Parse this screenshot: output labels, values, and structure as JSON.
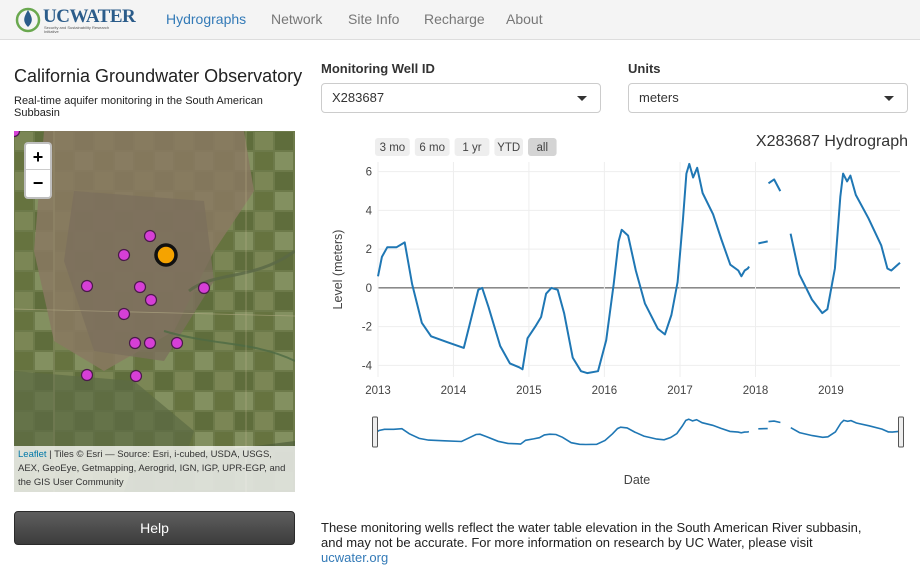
{
  "header": {
    "logo": {
      "title": "UCWATER",
      "tagline": "Security and Sustainability Research Initiative"
    },
    "nav": [
      {
        "label": "Hydrographs",
        "active": true
      },
      {
        "label": "Network",
        "active": false
      },
      {
        "label": "Site Info",
        "active": false
      },
      {
        "label": "Recharge",
        "active": false
      },
      {
        "label": "About",
        "active": false
      }
    ]
  },
  "sidebar": {
    "title": "California Groundwater Observatory",
    "subtitle": "Real-time aquifer monitoring in the South American Subbasin",
    "map": {
      "zoom_in": "+",
      "zoom_out": "−",
      "attribution_link": "Leaflet",
      "attribution_text": " | Tiles © Esri — Source: Esri, i-cubed, USDA, USGS, AEX, GeoEye, Getmapping, Aerogrid, IGN, IGP, UPR-EGP, and the GIS User Community",
      "markers": [
        {
          "id": 1,
          "selected": false
        },
        {
          "id": 2,
          "selected": false
        },
        {
          "id": 3,
          "selected": true
        },
        {
          "id": 4,
          "selected": false
        },
        {
          "id": 5,
          "selected": false
        },
        {
          "id": 6,
          "selected": false
        },
        {
          "id": 7,
          "selected": false
        },
        {
          "id": 8,
          "selected": false
        },
        {
          "id": 9,
          "selected": false
        },
        {
          "id": 10,
          "selected": false
        },
        {
          "id": 11,
          "selected": false
        },
        {
          "id": 12,
          "selected": false
        },
        {
          "id": 13,
          "selected": false
        },
        {
          "id": 14,
          "selected": false
        }
      ],
      "colors": {
        "marker": "#d63fd6",
        "selected_marker": "#f5a300"
      }
    },
    "help_button": "Help"
  },
  "controls": {
    "well_label": "Monitoring Well ID",
    "well_value": "X283687",
    "units_label": "Units",
    "units_value": "meters"
  },
  "chart_range_buttons": [
    "3 mo",
    "6 mo",
    "1 yr",
    "YTD",
    "all"
  ],
  "chart_range_active": "all",
  "footer": {
    "text": "These monitoring wells reflect the water table elevation in the South American River subbasin, and may not be accurate. For more information on research by UC Water, please visit ",
    "link": "ucwater.org"
  },
  "chart_data": {
    "type": "line",
    "title": "X283687 Hydrograph",
    "xlabel": "Date",
    "ylabel": "Level (meters)",
    "xlim": [
      "2013-01-01",
      "2019-12-01"
    ],
    "ylim": [
      -4.6,
      6.5
    ],
    "x_ticks": [
      "2013",
      "2014",
      "2015",
      "2016",
      "2017",
      "2018",
      "2019"
    ],
    "y_ticks": [
      -4,
      -2,
      0,
      2,
      4,
      6
    ],
    "line_color": "#1f77b4",
    "has_range_slider": true,
    "segments": [
      [
        [
          "2013-01-01",
          0.6
        ],
        [
          "2013-01-20",
          1.6
        ],
        [
          "2013-02-15",
          2.1
        ],
        [
          "2013-04-01",
          2.1
        ],
        [
          "2013-05-10",
          2.35
        ],
        [
          "2013-06-15",
          0.2
        ],
        [
          "2013-08-01",
          -1.8
        ],
        [
          "2013-09-15",
          -2.5
        ],
        [
          "2013-12-01",
          -2.8
        ],
        [
          "2014-02-20",
          -3.1
        ],
        [
          "2014-03-20",
          -1.9
        ],
        [
          "2014-05-01",
          -0.1
        ],
        [
          "2014-05-20",
          0.0
        ],
        [
          "2014-06-20",
          -1.0
        ],
        [
          "2014-08-15",
          -3.0
        ],
        [
          "2014-10-01",
          -3.9
        ],
        [
          "2014-11-15",
          -4.1
        ],
        [
          "2014-12-01",
          -4.2
        ],
        [
          "2014-12-25",
          -2.6
        ],
        [
          "2015-02-01",
          -2.0
        ],
        [
          "2015-03-01",
          -1.5
        ],
        [
          "2015-03-25",
          -0.3
        ],
        [
          "2015-04-20",
          0.0
        ],
        [
          "2015-05-20",
          -0.1
        ],
        [
          "2015-06-20",
          -1.3
        ],
        [
          "2015-08-01",
          -3.6
        ],
        [
          "2015-09-10",
          -4.3
        ],
        [
          "2015-10-10",
          -4.4
        ],
        [
          "2015-12-01",
          -4.3
        ],
        [
          "2016-01-10",
          -2.7
        ],
        [
          "2016-02-15",
          0.2
        ],
        [
          "2016-03-10",
          2.4
        ],
        [
          "2016-03-25",
          3.0
        ],
        [
          "2016-04-25",
          2.7
        ],
        [
          "2016-06-01",
          0.9
        ],
        [
          "2016-07-15",
          -0.8
        ],
        [
          "2016-09-15",
          -2.1
        ],
        [
          "2016-10-20",
          -2.4
        ],
        [
          "2016-11-20",
          -1.4
        ],
        [
          "2016-12-20",
          0.3
        ],
        [
          "2017-01-15",
          3.5
        ],
        [
          "2017-02-01",
          5.9
        ],
        [
          "2017-02-15",
          6.4
        ],
        [
          "2017-03-05",
          5.7
        ],
        [
          "2017-03-25",
          6.2
        ],
        [
          "2017-04-20",
          4.9
        ],
        [
          "2017-06-10",
          3.8
        ],
        [
          "2017-07-20",
          2.5
        ],
        [
          "2017-09-01",
          1.2
        ],
        [
          "2017-10-10",
          0.9
        ],
        [
          "2017-10-25",
          0.6
        ],
        [
          "2017-11-10",
          0.9
        ],
        [
          "2017-11-25",
          1.0
        ],
        [
          "2017-12-01",
          1.1
        ]
      ],
      [
        [
          "2018-01-15",
          2.3
        ],
        [
          "2018-03-01",
          2.4
        ]
      ],
      [
        [
          "2018-03-05",
          5.4
        ],
        [
          "2018-04-01",
          5.6
        ],
        [
          "2018-05-01",
          5.0
        ]
      ],
      [
        [
          "2018-06-20",
          2.8
        ],
        [
          "2018-08-01",
          0.7
        ],
        [
          "2018-10-01",
          -0.6
        ],
        [
          "2018-11-20",
          -1.3
        ],
        [
          "2018-12-15",
          -1.1
        ],
        [
          "2019-01-20",
          1.0
        ],
        [
          "2019-02-15",
          4.7
        ],
        [
          "2019-03-01",
          5.9
        ],
        [
          "2019-03-20",
          5.5
        ],
        [
          "2019-04-05",
          5.8
        ],
        [
          "2019-05-01",
          4.8
        ],
        [
          "2019-07-01",
          3.6
        ],
        [
          "2019-09-01",
          2.2
        ],
        [
          "2019-10-01",
          1.0
        ],
        [
          "2019-10-20",
          0.9
        ],
        [
          "2019-11-20",
          1.2
        ],
        [
          "2019-12-01",
          1.3
        ]
      ]
    ]
  }
}
